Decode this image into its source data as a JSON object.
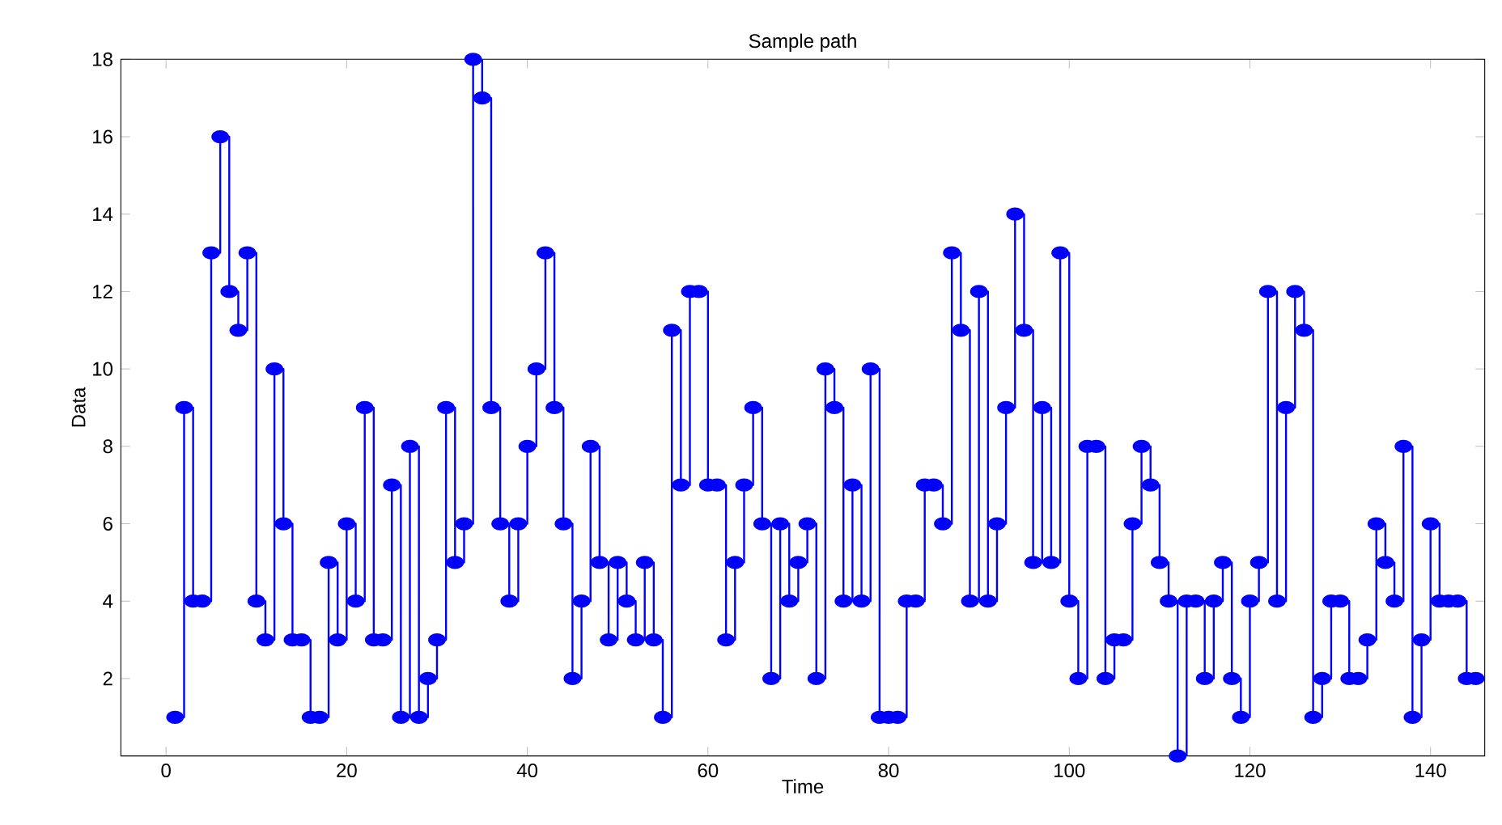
{
  "chart_data": {
    "type": "step",
    "title": "Sample path",
    "xlabel": "Time",
    "ylabel": "Data",
    "x": [
      1,
      2,
      3,
      4,
      5,
      6,
      7,
      8,
      9,
      10,
      11,
      12,
      13,
      14,
      15,
      16,
      17,
      18,
      19,
      20,
      21,
      22,
      23,
      24,
      25,
      26,
      27,
      28,
      29,
      30,
      31,
      32,
      33,
      34,
      35,
      36,
      37,
      38,
      39,
      40,
      41,
      42,
      43,
      44,
      45,
      46,
      47,
      48,
      49,
      50,
      51,
      52,
      53,
      54,
      55,
      56,
      57,
      58,
      59,
      60,
      61,
      62,
      63,
      64,
      65,
      66,
      67,
      68,
      69,
      70,
      71,
      72,
      73,
      74,
      75,
      76,
      77,
      78,
      79,
      80,
      81,
      82,
      83,
      84,
      85,
      86,
      87,
      88,
      89,
      90,
      91,
      92,
      93,
      94,
      95,
      96,
      97,
      98,
      99,
      100,
      101,
      102,
      103,
      104,
      105,
      106,
      107,
      108,
      109,
      110,
      111,
      112,
      113,
      114,
      115,
      116,
      117,
      118,
      119,
      120,
      121,
      122,
      123,
      124,
      125,
      126,
      127,
      128,
      129,
      130,
      131,
      132,
      133,
      134,
      135,
      136,
      137,
      138,
      139,
      140,
      141,
      142,
      143,
      144,
      145
    ],
    "series": [
      {
        "color": "#0000ff",
        "values": [
          1,
          9,
          4,
          4,
          13,
          16,
          12,
          11,
          13,
          4,
          3,
          10,
          6,
          3,
          3,
          1,
          1,
          5,
          3,
          6,
          4,
          9,
          3,
          3,
          7,
          1,
          8,
          1,
          2,
          3,
          9,
          5,
          6,
          18,
          17,
          9,
          6,
          4,
          6,
          8,
          10,
          13,
          9,
          6,
          2,
          4,
          8,
          5,
          3,
          5,
          4,
          3,
          5,
          3,
          1,
          11,
          7,
          12,
          12,
          7,
          7,
          3,
          5,
          7,
          9,
          6,
          2,
          6,
          4,
          5,
          6,
          2,
          10,
          9,
          4,
          7,
          4,
          10,
          1,
          1,
          1,
          4,
          4,
          7,
          7,
          6,
          13,
          11,
          4,
          12,
          4,
          6,
          9,
          14,
          11,
          5,
          9,
          5,
          13,
          4,
          2,
          8,
          8,
          2,
          3,
          3,
          6,
          8,
          7,
          5,
          4,
          0,
          4,
          4,
          2,
          4,
          5,
          2,
          1,
          4,
          5,
          12,
          4,
          9,
          12,
          11,
          1,
          2,
          4,
          4,
          2,
          2,
          3,
          6,
          5,
          4,
          8,
          1,
          3,
          6,
          4,
          4,
          4,
          2,
          2
        ]
      }
    ],
    "xlim": [
      -5,
      146
    ],
    "ylim": [
      0,
      18
    ],
    "xticks": [
      0,
      20,
      40,
      60,
      80,
      100,
      120,
      140
    ],
    "yticks": [
      2,
      4,
      6,
      8,
      10,
      12,
      14,
      16,
      18
    ],
    "grid": false,
    "marker": "circle",
    "line_style": "solid"
  }
}
